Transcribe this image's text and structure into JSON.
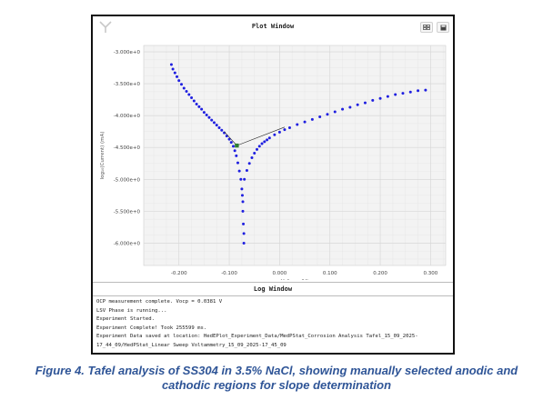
{
  "window": {
    "plot_title": "Plot Window",
    "log_title": "Log Window"
  },
  "icons": {
    "logo": "app-logo-icon",
    "buttons": [
      "grid-icon",
      "save-icon"
    ]
  },
  "chart_data": {
    "type": "scatter",
    "xlabel": "Voltage (V)",
    "ylabel": "log₁₀(Current) (mA)",
    "xlim": [
      -0.27,
      0.33
    ],
    "ylim": [
      -6.35,
      -2.9
    ],
    "x_ticks": [
      -0.2,
      -0.1,
      0.0,
      0.1,
      0.2,
      0.3
    ],
    "x_tick_labels": [
      "-0.200",
      "-0.100",
      "0.000",
      "0.100",
      "0.200",
      "0.300"
    ],
    "y_ticks": [
      -3.0,
      -3.5,
      -4.0,
      -4.5,
      -5.0,
      -5.5,
      -6.0
    ],
    "y_tick_labels": [
      "-3.000e+0",
      "-3.500e+0",
      "-4.000e+0",
      "-4.500e+0",
      "-5.000e+0",
      "-5.500e+0",
      "-6.000e+0"
    ],
    "grid": true,
    "series_color": "#1f1fe0",
    "cathodic_branch": {
      "x": [
        -0.215,
        -0.212,
        -0.208,
        -0.204,
        -0.2,
        -0.195,
        -0.19,
        -0.185,
        -0.18,
        -0.175,
        -0.17,
        -0.165,
        -0.16,
        -0.155,
        -0.15,
        -0.145,
        -0.14,
        -0.135,
        -0.13,
        -0.125,
        -0.12,
        -0.115,
        -0.11,
        -0.105,
        -0.1,
        -0.096,
        -0.092,
        -0.089,
        -0.086,
        -0.083,
        -0.08,
        -0.077
      ],
      "y": [
        -3.2,
        -3.27,
        -3.33,
        -3.39,
        -3.45,
        -3.51,
        -3.57,
        -3.62,
        -3.67,
        -3.72,
        -3.77,
        -3.82,
        -3.86,
        -3.9,
        -3.95,
        -3.99,
        -4.03,
        -4.07,
        -4.11,
        -4.15,
        -4.19,
        -4.23,
        -4.27,
        -4.32,
        -4.37,
        -4.42,
        -4.48,
        -4.55,
        -4.63,
        -4.74,
        -4.87,
        -5.0
      ]
    },
    "dip_points": {
      "x": [
        -0.075,
        -0.074,
        -0.073,
        -0.073,
        -0.072,
        -0.071,
        -0.071
      ],
      "y": [
        -5.15,
        -5.25,
        -5.35,
        -5.5,
        -5.7,
        -5.85,
        -6.0
      ]
    },
    "anodic_branch": {
      "x": [
        -0.07,
        -0.065,
        -0.06,
        -0.055,
        -0.05,
        -0.045,
        -0.04,
        -0.035,
        -0.03,
        -0.025,
        -0.02,
        -0.01,
        0.0,
        0.01,
        0.02,
        0.035,
        0.05,
        0.065,
        0.08,
        0.095,
        0.11,
        0.125,
        0.14,
        0.155,
        0.17,
        0.185,
        0.2,
        0.215,
        0.23,
        0.245,
        0.26,
        0.275,
        0.29
      ],
      "y": [
        -5.0,
        -4.86,
        -4.75,
        -4.66,
        -4.59,
        -4.53,
        -4.48,
        -4.44,
        -4.41,
        -4.38,
        -4.35,
        -4.3,
        -4.26,
        -4.22,
        -4.19,
        -4.14,
        -4.1,
        -4.06,
        -4.02,
        -3.98,
        -3.94,
        -3.9,
        -3.87,
        -3.83,
        -3.8,
        -3.76,
        -3.73,
        -3.7,
        -3.67,
        -3.65,
        -3.63,
        -3.61,
        -3.6
      ]
    },
    "fit_lines": [
      {
        "x": [
          -0.11,
          -0.085
        ],
        "y": [
          -4.25,
          -4.47
        ]
      },
      {
        "x": [
          -0.085,
          0.01
        ],
        "y": [
          -4.47,
          -4.18
        ]
      }
    ],
    "intersection_point": {
      "x": -0.085,
      "y": -4.47
    },
    "intersection_color": "#2e7d32"
  },
  "log": {
    "lines": [
      "OCP measurement complete. Vocp = 0.0381 V",
      "LSV Phase is running...",
      "Experiment Started.",
      "Experiment Complete! Took 255599 ms.",
      "Experiment Data saved at location: HedEPlot_Experiment_Data/MedPStat_Corrosion Analysis Tafel_15_09_2025-",
      "17_44_09/HedPStat_Linear Sweep Voltammetry_15_09_2025-17_45_09"
    ]
  },
  "caption": {
    "line1": "Figure 4. Tafel analysis of SS304 in 3.5% NaCl, showing manually selected anodic and",
    "line2": "cathodic regions for slope determination"
  }
}
